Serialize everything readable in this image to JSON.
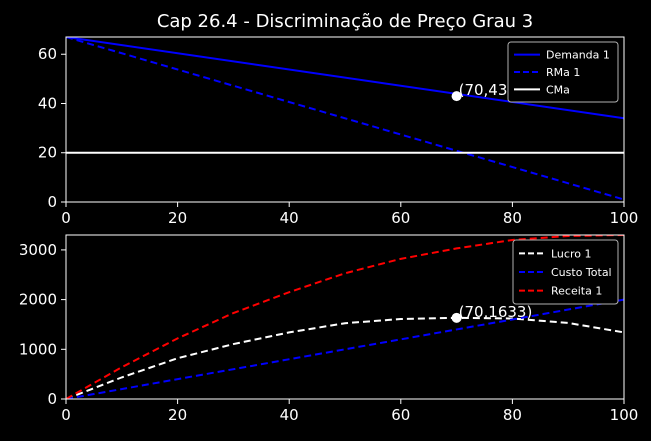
{
  "chart_data": {
    "type": "line",
    "title": "Cap 26.4 - Discriminação de Preço Grau 3",
    "background": "#000000",
    "panels": [
      {
        "xlim": [
          0,
          100
        ],
        "ylim": [
          0,
          67
        ],
        "xticks": [
          0,
          20,
          40,
          60,
          80,
          100
        ],
        "yticks": [
          0,
          20,
          40,
          60
        ],
        "legend_position": "top-right",
        "series": [
          {
            "name": "Demanda 1",
            "color": "#0000ff",
            "dash": "solid",
            "x": [
              0,
              100
            ],
            "y": [
              67,
              34
            ]
          },
          {
            "name": "RMa 1",
            "color": "#0000ff",
            "dash": "dashed",
            "x": [
              0,
              100
            ],
            "y": [
              67,
              1
            ]
          },
          {
            "name": "CMa",
            "color": "#ffffff",
            "dash": "solid",
            "x": [
              0,
              100
            ],
            "y": [
              20,
              20
            ]
          }
        ],
        "points": [
          {
            "x": 70,
            "y": 43,
            "label": "(70,43)"
          }
        ]
      },
      {
        "xlim": [
          0,
          100
        ],
        "ylim": [
          0,
          3300
        ],
        "xticks": [
          0,
          20,
          40,
          60,
          80,
          100
        ],
        "yticks": [
          0,
          1000,
          2000,
          3000
        ],
        "legend_position": "top-right",
        "series": [
          {
            "name": "Lucro 1",
            "color": "#ffffff",
            "dash": "dashed",
            "x": [
              0,
              10,
              20,
              30,
              40,
              50,
              60,
              70,
              80,
              90,
              100
            ],
            "y": [
              0,
              435,
              820,
              1105,
              1340,
              1525,
              1610,
              1633,
              1620,
              1530,
              1340
            ]
          },
          {
            "name": "Custo Total",
            "color": "#0000ff",
            "dash": "dashed",
            "x": [
              0,
              100
            ],
            "y": [
              0,
              2000
            ]
          },
          {
            "name": "Receita 1",
            "color": "#ff0000",
            "dash": "dashed",
            "x": [
              0,
              10,
              20,
              30,
              40,
              50,
              60,
              70,
              80,
              90,
              100
            ],
            "y": [
              0,
              640,
              1220,
              1730,
              2150,
              2530,
              2820,
              3030,
              3200,
              3280,
              3300
            ]
          }
        ],
        "points": [
          {
            "x": 70,
            "y": 1633,
            "label": "(70,1633)"
          }
        ]
      }
    ]
  }
}
